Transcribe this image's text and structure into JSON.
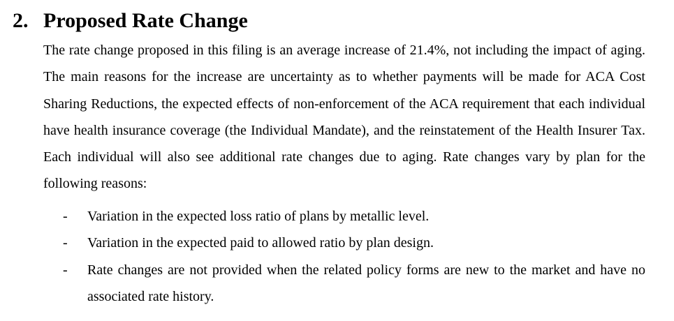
{
  "document": {
    "background_color": "#ffffff",
    "text_color": "#000000",
    "heading": {
      "number": "2.",
      "title": "Proposed Rate Change"
    },
    "paragraph": "The rate change proposed in this filing is an average increase of 21.4%, not including the impact of aging.  The main reasons for the increase are uncertainty as to whether payments will be made for ACA Cost Sharing Reductions, the expected effects of non-enforcement of the ACA requirement that each individual have health insurance coverage (the Individual Mandate), and the reinstatement of the Health Insurer Tax.  Each individual will also see additional rate changes due to aging. Rate changes vary by plan for the following reasons:",
    "bullets": [
      {
        "marker": "-",
        "text": "Variation in the expected loss ratio of plans by metallic level."
      },
      {
        "marker": "-",
        "text": "Variation in the expected paid to allowed ratio by plan design."
      },
      {
        "marker": "-",
        "text": "Rate changes are not provided when the related policy forms are new to the market and have no associated rate history."
      }
    ]
  }
}
